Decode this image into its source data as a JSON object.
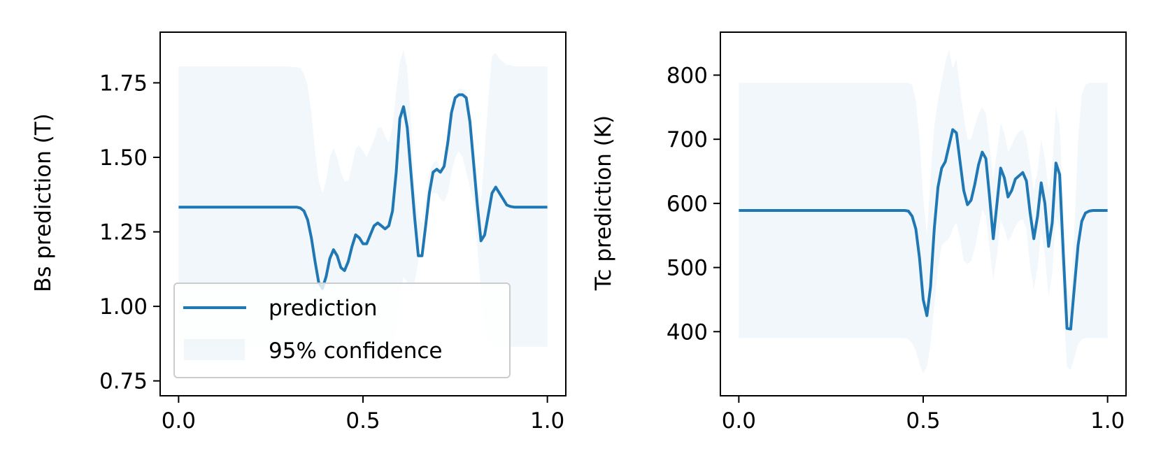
{
  "colors": {
    "line": "#1f77b4",
    "band": "#1f77b4",
    "axis": "#000000",
    "background": "#ffffff"
  },
  "legend_labels": {
    "prediction": "prediction",
    "confidence": "95% confidence"
  },
  "chart_data": [
    {
      "type": "line",
      "id": "bs",
      "xlabel": "",
      "ylabel": "Bs prediction (T)",
      "xlim": [
        -0.05,
        1.05
      ],
      "ylim": [
        0.7,
        1.92
      ],
      "xticks": [
        "0.0",
        "0.5",
        "1.0"
      ],
      "yticks": [
        "0.75",
        "1.00",
        "1.25",
        "1.50",
        "1.75"
      ],
      "legend": {
        "placement": "lower-left",
        "entries": [
          "prediction",
          "95% confidence"
        ]
      },
      "series": [
        {
          "name": "prediction",
          "x": [
            0.0,
            0.3,
            0.32,
            0.33,
            0.34,
            0.35,
            0.36,
            0.37,
            0.38,
            0.39,
            0.4,
            0.41,
            0.42,
            0.43,
            0.44,
            0.45,
            0.46,
            0.47,
            0.48,
            0.49,
            0.5,
            0.51,
            0.52,
            0.53,
            0.54,
            0.55,
            0.56,
            0.57,
            0.58,
            0.59,
            0.6,
            0.61,
            0.62,
            0.63,
            0.64,
            0.65,
            0.66,
            0.67,
            0.68,
            0.69,
            0.7,
            0.71,
            0.72,
            0.73,
            0.74,
            0.75,
            0.76,
            0.77,
            0.78,
            0.79,
            0.8,
            0.81,
            0.82,
            0.83,
            0.84,
            0.85,
            0.86,
            0.87,
            0.88,
            0.89,
            0.9,
            0.91,
            0.92,
            0.93,
            0.94,
            0.95,
            0.96,
            0.97,
            0.98,
            1.0
          ],
          "y": [
            1.333,
            1.333,
            1.333,
            1.33,
            1.32,
            1.29,
            1.23,
            1.15,
            1.08,
            1.06,
            1.1,
            1.16,
            1.19,
            1.17,
            1.13,
            1.12,
            1.15,
            1.2,
            1.24,
            1.23,
            1.21,
            1.21,
            1.24,
            1.27,
            1.28,
            1.27,
            1.26,
            1.27,
            1.32,
            1.45,
            1.63,
            1.67,
            1.6,
            1.45,
            1.3,
            1.17,
            1.17,
            1.27,
            1.38,
            1.45,
            1.46,
            1.45,
            1.47,
            1.55,
            1.65,
            1.7,
            1.71,
            1.71,
            1.7,
            1.62,
            1.48,
            1.34,
            1.22,
            1.24,
            1.31,
            1.38,
            1.4,
            1.38,
            1.36,
            1.34,
            1.335,
            1.333,
            1.333,
            1.333,
            1.333,
            1.333,
            1.333,
            1.333,
            1.333,
            1.333
          ]
        }
      ],
      "band": {
        "name": "95% confidence",
        "x": [
          0.0,
          0.3,
          0.33,
          0.34,
          0.35,
          0.36,
          0.37,
          0.38,
          0.39,
          0.4,
          0.41,
          0.42,
          0.43,
          0.44,
          0.45,
          0.46,
          0.47,
          0.48,
          0.49,
          0.5,
          0.51,
          0.52,
          0.53,
          0.54,
          0.55,
          0.56,
          0.57,
          0.58,
          0.59,
          0.6,
          0.61,
          0.62,
          0.63,
          0.64,
          0.65,
          0.66,
          0.67,
          0.68,
          0.69,
          0.7,
          0.71,
          0.72,
          0.73,
          0.74,
          0.75,
          0.76,
          0.77,
          0.78,
          0.79,
          0.8,
          0.81,
          0.82,
          0.83,
          0.84,
          0.85,
          0.86,
          0.87,
          0.88,
          0.89,
          0.9,
          0.91,
          0.92,
          0.93,
          0.94,
          0.95,
          0.96,
          0.97,
          0.98,
          1.0
        ],
        "upper": [
          1.805,
          1.805,
          1.8,
          1.78,
          1.74,
          1.65,
          1.52,
          1.42,
          1.38,
          1.42,
          1.5,
          1.53,
          1.5,
          1.45,
          1.42,
          1.42,
          1.47,
          1.53,
          1.54,
          1.52,
          1.5,
          1.53,
          1.56,
          1.6,
          1.6,
          1.57,
          1.55,
          1.6,
          1.72,
          1.82,
          1.86,
          1.8,
          1.62,
          1.4,
          1.3,
          1.28,
          1.36,
          1.45,
          1.48,
          1.49,
          1.46,
          1.48,
          1.56,
          1.66,
          1.71,
          1.73,
          1.73,
          1.72,
          1.67,
          1.55,
          1.42,
          1.35,
          1.52,
          1.7,
          1.84,
          1.85,
          1.83,
          1.82,
          1.81,
          1.81,
          1.805,
          1.805,
          1.805,
          1.805,
          1.805,
          1.805,
          1.805,
          1.805,
          1.805
        ],
        "lower": [
          0.865,
          0.865,
          0.865,
          0.865,
          0.865,
          0.865,
          0.865,
          0.865,
          0.865,
          0.865,
          0.865,
          0.865,
          0.865,
          0.865,
          0.865,
          0.865,
          0.865,
          0.865,
          0.865,
          0.865,
          0.865,
          0.865,
          0.865,
          0.865,
          0.865,
          0.865,
          0.865,
          0.87,
          0.92,
          1.04,
          1.1,
          1.08,
          1.05,
          1.08,
          1.15,
          1.25,
          1.33,
          1.37,
          1.38,
          1.38,
          1.36,
          1.35,
          1.38,
          1.45,
          1.5,
          1.52,
          1.5,
          1.45,
          1.4,
          1.35,
          1.2,
          1.05,
          0.93,
          0.88,
          0.87,
          0.865,
          0.865,
          0.865,
          0.865,
          0.865,
          0.865,
          0.865,
          0.865,
          0.865,
          0.865,
          0.865,
          0.865,
          0.865,
          0.865
        ]
      }
    },
    {
      "type": "line",
      "id": "tc",
      "xlabel": "",
      "ylabel": "Tc prediction (K)",
      "xlim": [
        -0.05,
        1.05
      ],
      "ylim": [
        300,
        867
      ],
      "xticks": [
        "0.0",
        "0.5",
        "1.0"
      ],
      "yticks": [
        "400",
        "500",
        "600",
        "700",
        "800"
      ],
      "series": [
        {
          "name": "prediction",
          "x": [
            0.0,
            0.45,
            0.46,
            0.47,
            0.48,
            0.49,
            0.5,
            0.51,
            0.52,
            0.53,
            0.54,
            0.55,
            0.56,
            0.57,
            0.58,
            0.59,
            0.6,
            0.61,
            0.62,
            0.63,
            0.64,
            0.65,
            0.66,
            0.67,
            0.68,
            0.69,
            0.7,
            0.71,
            0.72,
            0.73,
            0.74,
            0.75,
            0.76,
            0.77,
            0.78,
            0.79,
            0.8,
            0.81,
            0.82,
            0.83,
            0.84,
            0.85,
            0.86,
            0.87,
            0.88,
            0.89,
            0.9,
            0.91,
            0.92,
            0.93,
            0.94,
            0.95,
            0.96,
            1.0
          ],
          "y": [
            589,
            589,
            588,
            580,
            560,
            515,
            450,
            425,
            470,
            560,
            625,
            655,
            665,
            690,
            715,
            710,
            665,
            620,
            598,
            605,
            630,
            660,
            680,
            670,
            610,
            545,
            600,
            655,
            640,
            610,
            620,
            638,
            643,
            648,
            635,
            585,
            545,
            580,
            632,
            600,
            533,
            570,
            663,
            645,
            520,
            405,
            404,
            470,
            535,
            572,
            585,
            588,
            589,
            589
          ]
        }
      ],
      "band": {
        "name": "95% confidence",
        "x": [
          0.0,
          0.45,
          0.46,
          0.47,
          0.48,
          0.49,
          0.5,
          0.51,
          0.52,
          0.53,
          0.54,
          0.55,
          0.56,
          0.57,
          0.58,
          0.59,
          0.6,
          0.61,
          0.62,
          0.63,
          0.64,
          0.65,
          0.66,
          0.67,
          0.68,
          0.69,
          0.7,
          0.71,
          0.72,
          0.73,
          0.74,
          0.75,
          0.76,
          0.77,
          0.78,
          0.79,
          0.8,
          0.81,
          0.82,
          0.83,
          0.84,
          0.85,
          0.86,
          0.87,
          0.88,
          0.89,
          0.9,
          0.91,
          0.92,
          0.93,
          0.94,
          0.95,
          0.96,
          1.0
        ],
        "upper": [
          788,
          788,
          788,
          785,
          760,
          700,
          610,
          550,
          640,
          720,
          760,
          790,
          820,
          840,
          810,
          825,
          780,
          735,
          700,
          700,
          720,
          740,
          750,
          740,
          690,
          640,
          680,
          725,
          710,
          680,
          690,
          705,
          712,
          715,
          700,
          660,
          620,
          650,
          700,
          670,
          620,
          660,
          750,
          720,
          600,
          470,
          450,
          560,
          700,
          770,
          785,
          788,
          788,
          788
        ],
        "lower": [
          390,
          390,
          388,
          382,
          370,
          350,
          335,
          345,
          380,
          440,
          500,
          535,
          540,
          545,
          560,
          570,
          545,
          510,
          505,
          510,
          530,
          560,
          590,
          580,
          530,
          480,
          520,
          575,
          560,
          540,
          550,
          565,
          572,
          575,
          560,
          500,
          465,
          500,
          555,
          520,
          455,
          490,
          580,
          560,
          440,
          345,
          340,
          360,
          380,
          388,
          390,
          390,
          390,
          390
        ]
      }
    }
  ]
}
